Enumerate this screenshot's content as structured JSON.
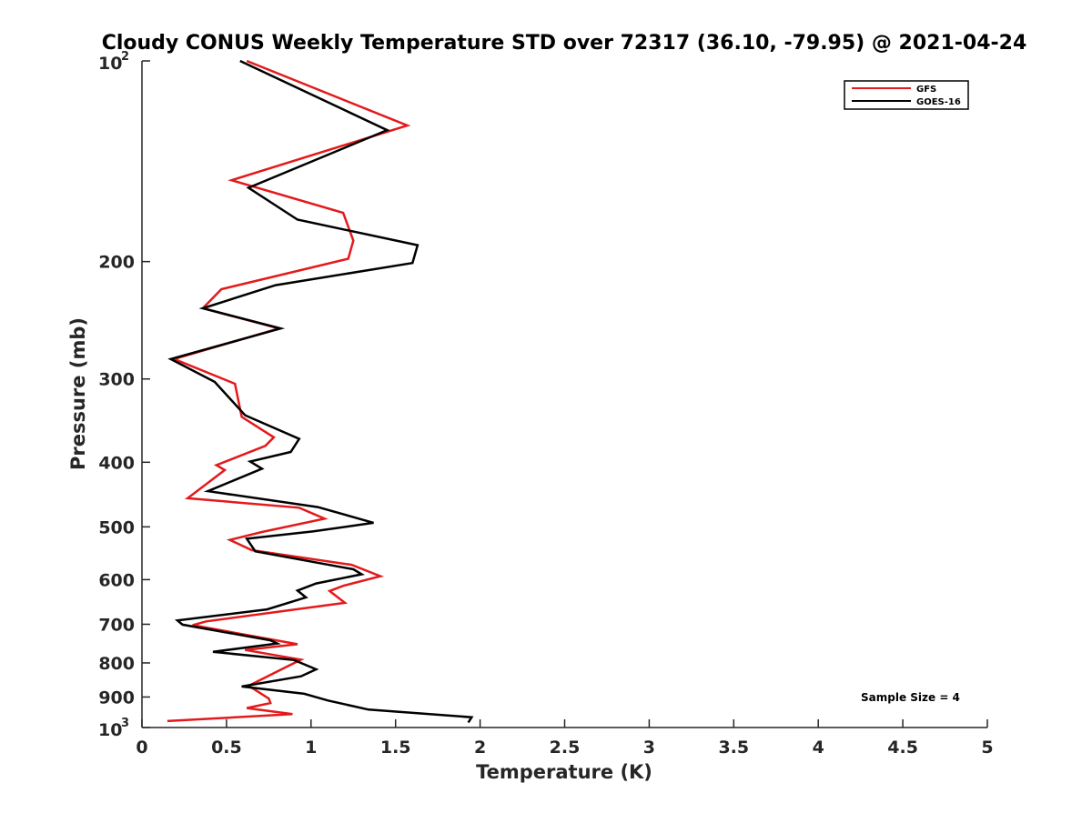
{
  "chart_data": {
    "type": "line",
    "title": "Cloudy CONUS Weekly Temperature STD over 72317 (36.10, -79.95) @ 2021-04-24",
    "xlabel": "Temperature (K)",
    "ylabel": "Pressure (mb)",
    "xlim": [
      0,
      5
    ],
    "ylim": [
      100,
      1000
    ],
    "y_scale": "log",
    "y_reversed": true,
    "grid": false,
    "legend_position": "top-right",
    "x_ticks": [
      0,
      0.5,
      1,
      1.5,
      2,
      2.5,
      3,
      3.5,
      4,
      4.5,
      5
    ],
    "x_tick_labels": [
      "0",
      "0.5",
      "1",
      "1.5",
      "2",
      "2.5",
      "3",
      "3.5",
      "4",
      "4.5",
      "5"
    ],
    "y_ticks": [
      {
        "value": 100,
        "base": "10",
        "exp": "2"
      },
      {
        "value": 200,
        "label": "200"
      },
      {
        "value": 300,
        "label": "300"
      },
      {
        "value": 400,
        "label": "400"
      },
      {
        "value": 500,
        "label": "500"
      },
      {
        "value": 600,
        "label": "600"
      },
      {
        "value": 700,
        "label": "700"
      },
      {
        "value": 800,
        "label": "800"
      },
      {
        "value": 900,
        "label": "900"
      },
      {
        "value": 1000,
        "base": "10",
        "exp": "3"
      }
    ],
    "annotation": "Sample Size = 4",
    "series": [
      {
        "name": "GFS",
        "color": "#e31a1c",
        "points": [
          [
            0.62,
            100
          ],
          [
            1.57,
            125
          ],
          [
            0.53,
            151
          ],
          [
            1.19,
            169
          ],
          [
            1.25,
            186
          ],
          [
            1.22,
            198
          ],
          [
            0.47,
            220
          ],
          [
            0.36,
            235
          ],
          [
            0.81,
            252
          ],
          [
            0.19,
            280
          ],
          [
            0.55,
            305
          ],
          [
            0.59,
            342
          ],
          [
            0.78,
            367
          ],
          [
            0.73,
            378
          ],
          [
            0.44,
            404
          ],
          [
            0.49,
            411
          ],
          [
            0.27,
            453
          ],
          [
            0.93,
            468
          ],
          [
            1.08,
            486
          ],
          [
            0.71,
            509
          ],
          [
            0.52,
            523
          ],
          [
            0.65,
            542
          ],
          [
            1.24,
            570
          ],
          [
            1.41,
            593
          ],
          [
            1.19,
            613
          ],
          [
            1.11,
            624
          ],
          [
            1.2,
            650
          ],
          [
            0.38,
            693
          ],
          [
            0.3,
            702
          ],
          [
            0.92,
            750
          ],
          [
            0.61,
            765
          ],
          [
            0.94,
            791
          ],
          [
            0.85,
            812
          ],
          [
            0.63,
            866
          ],
          [
            0.66,
            875
          ],
          [
            0.75,
            905
          ],
          [
            0.76,
            919
          ],
          [
            0.62,
            935
          ],
          [
            0.89,
            955
          ],
          [
            0.15,
            978
          ]
        ]
      },
      {
        "name": "GOES-16",
        "color": "#000000",
        "points": [
          [
            0.58,
            100
          ],
          [
            1.45,
            127
          ],
          [
            0.63,
            155
          ],
          [
            0.92,
            173
          ],
          [
            1.63,
            189
          ],
          [
            1.6,
            201
          ],
          [
            0.79,
            217
          ],
          [
            0.36,
            235
          ],
          [
            0.82,
            252
          ],
          [
            0.17,
            280
          ],
          [
            0.43,
            303
          ],
          [
            0.61,
            340
          ],
          [
            0.93,
            369
          ],
          [
            0.88,
            386
          ],
          [
            0.64,
            399
          ],
          [
            0.71,
            409
          ],
          [
            0.39,
            442
          ],
          [
            1.04,
            467
          ],
          [
            1.37,
            493
          ],
          [
            1.01,
            508
          ],
          [
            0.62,
            521
          ],
          [
            0.67,
            544
          ],
          [
            1.25,
            579
          ],
          [
            1.3,
            589
          ],
          [
            1.03,
            608
          ],
          [
            0.92,
            623
          ],
          [
            0.97,
            638
          ],
          [
            0.74,
            665
          ],
          [
            0.21,
            691
          ],
          [
            0.24,
            701
          ],
          [
            0.76,
            740
          ],
          [
            0.8,
            748
          ],
          [
            0.42,
            770
          ],
          [
            0.9,
            792
          ],
          [
            1.03,
            818
          ],
          [
            0.94,
            838
          ],
          [
            0.59,
            868
          ],
          [
            0.96,
            890
          ],
          [
            1.1,
            911
          ],
          [
            1.34,
            940
          ],
          [
            1.95,
            965
          ],
          [
            1.93,
            983
          ]
        ]
      }
    ]
  }
}
